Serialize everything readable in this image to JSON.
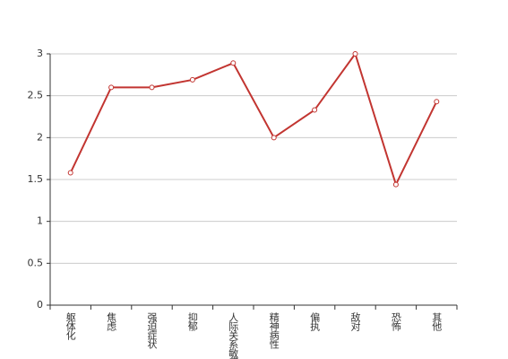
{
  "chart_data": {
    "type": "line",
    "categories": [
      "躯体化",
      "焦虑",
      "强迫症状",
      "抑郁",
      "人际关系敏感",
      "精神病性",
      "偏执",
      "敌对",
      "恐怖",
      "其他"
    ],
    "values": [
      1.58,
      2.6,
      2.6,
      2.69,
      2.89,
      2.0,
      2.33,
      3.0,
      1.44,
      2.43
    ],
    "color": "#c23531",
    "ylim": [
      0,
      3
    ],
    "yticks": [
      0,
      0.5,
      1,
      1.5,
      2,
      2.5,
      3
    ],
    "grid": true
  }
}
